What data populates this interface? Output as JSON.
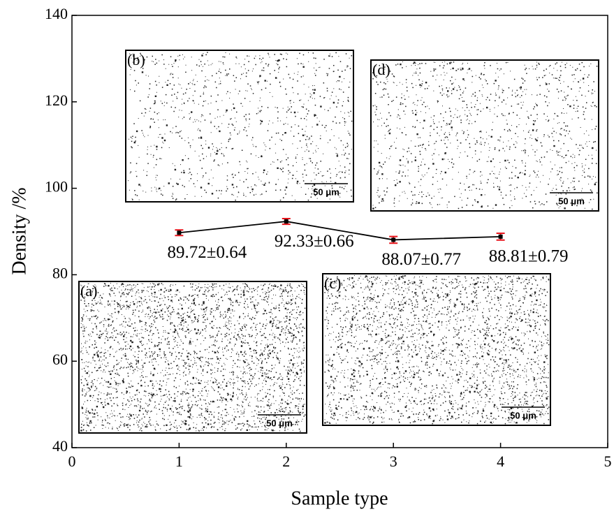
{
  "chart_data": {
    "type": "line",
    "x_label": "Sample type",
    "y_label": "Density /%",
    "x": [
      1,
      2,
      3,
      4
    ],
    "series": [
      {
        "color": "#000000",
        "error_color": "#e8141b",
        "values": [
          89.72,
          92.33,
          88.07,
          88.81
        ],
        "errors": [
          0.64,
          0.66,
          0.77,
          0.79
        ],
        "value_labels": [
          "89.72±0.64",
          "92.33±0.66",
          "88.07±0.77",
          "88.81±0.79"
        ]
      }
    ],
    "xlim": [
      0,
      5
    ],
    "xticks": [
      0,
      1,
      2,
      3,
      4,
      5
    ],
    "ylim": [
      40,
      140
    ],
    "yticks": [
      40,
      60,
      80,
      100,
      120,
      140
    ],
    "grid": false,
    "insets": [
      {
        "label": "(a)",
        "scale_bar": "50 μm"
      },
      {
        "label": "(b)",
        "scale_bar": "50 μm"
      },
      {
        "label": "(c)",
        "scale_bar": "50 μm"
      },
      {
        "label": "(d)",
        "scale_bar": "50 μm"
      }
    ]
  }
}
